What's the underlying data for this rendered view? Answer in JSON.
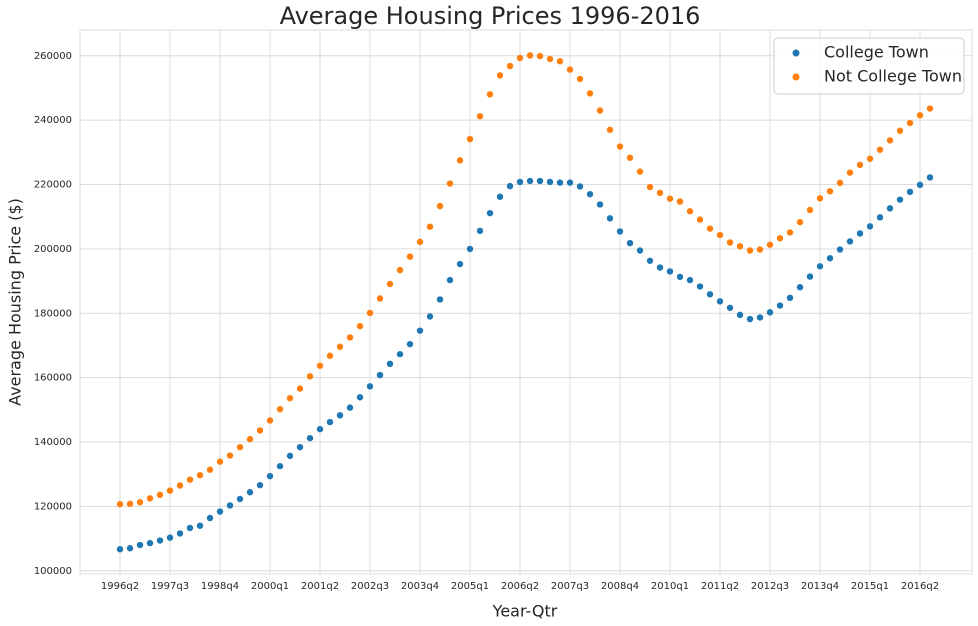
{
  "chart_data": {
    "type": "scatter",
    "title": "Average Housing Prices 1996-2016",
    "x_label": "Year-Qtr",
    "y_label": "Average Housing Price ($)",
    "categories": [
      "1996q2",
      null,
      null,
      null,
      null,
      "1997q3",
      null,
      null,
      null,
      null,
      "1998q4",
      null,
      null,
      null,
      null,
      "2000q1",
      null,
      null,
      null,
      null,
      "2001q2",
      null,
      null,
      null,
      null,
      "2002q3",
      null,
      null,
      null,
      null,
      "2003q4",
      null,
      null,
      null,
      null,
      "2005q1",
      null,
      null,
      null,
      null,
      "2006q2",
      null,
      null,
      null,
      null,
      "2007q3",
      null,
      null,
      null,
      null,
      "2008q4",
      null,
      null,
      null,
      null,
      "2010q1",
      null,
      null,
      null,
      null,
      "2011q2",
      null,
      null,
      null,
      null,
      "2012q3",
      null,
      null,
      null,
      null,
      "2013q4",
      null,
      null,
      null,
      null,
      "2015q1",
      null,
      null,
      null,
      null,
      "2016q2",
      null
    ],
    "series": [
      {
        "name": "College Town",
        "color": "#1f77b4",
        "values": [
          106700,
          107000,
          108000,
          108600,
          109400,
          110300,
          111600,
          113300,
          114000,
          116400,
          118400,
          120300,
          122300,
          124400,
          126600,
          129400,
          132500,
          135700,
          138400,
          141200,
          144000,
          146200,
          148300,
          150700,
          153900,
          157300,
          160800,
          164300,
          167300,
          170400,
          174600,
          179000,
          184300,
          190300,
          195300,
          200000,
          205600,
          211100,
          216200,
          219500,
          220800,
          221100,
          221100,
          220800,
          220600,
          220600,
          219400,
          217000,
          213800,
          209500,
          205400,
          201800,
          199500,
          196300,
          194200,
          193000,
          191300,
          190300,
          188300,
          185900,
          183700,
          181700,
          179500,
          178200,
          178700,
          180300,
          182400,
          184800,
          188100,
          191400,
          194600,
          197100,
          199800,
          202300,
          204800,
          207000,
          209800,
          212600,
          215300,
          217700,
          219900,
          222200
        ]
      },
      {
        "name": "Not College Town",
        "color": "#ff7f0e",
        "values": [
          120700,
          120800,
          121300,
          122500,
          123600,
          124900,
          126500,
          128300,
          129700,
          131400,
          133900,
          135800,
          138400,
          140900,
          143600,
          146700,
          150200,
          153600,
          156600,
          160400,
          163700,
          166800,
          169600,
          172500,
          176000,
          180100,
          184600,
          189100,
          193400,
          197600,
          202200,
          206900,
          213300,
          220300,
          227500,
          234100,
          241200,
          248000,
          253900,
          256800,
          259300,
          260100,
          259900,
          259000,
          258300,
          255700,
          252800,
          248300,
          243000,
          237000,
          231800,
          228300,
          224000,
          219200,
          217400,
          215600,
          214700,
          211700,
          209100,
          206300,
          204300,
          202000,
          200800,
          199500,
          199800,
          201300,
          203300,
          205100,
          208300,
          212100,
          215700,
          217900,
          220500,
          223700,
          226100,
          228000,
          230800,
          233700,
          236700,
          239100,
          241500,
          243600
        ]
      }
    ],
    "ylim": [
      99000,
      268000
    ],
    "yticks": [
      100000,
      120000,
      140000,
      160000,
      180000,
      200000,
      220000,
      240000,
      260000
    ],
    "grid": true,
    "legend": "upper right"
  }
}
